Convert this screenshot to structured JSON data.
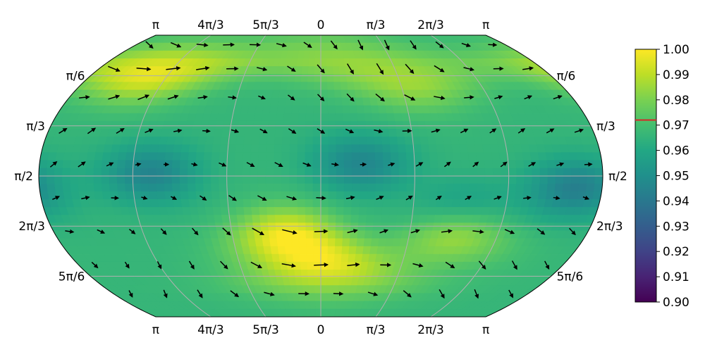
{
  "chart_data": {
    "type": "heatmap",
    "projection": "kavrayskiy",
    "title": "",
    "xlabel": "",
    "ylabel": "",
    "longitude_tick_labels": [
      "π",
      "4π/3",
      "5π/3",
      "0",
      "π/3",
      "2π/3",
      "π"
    ],
    "latitude_tick_labels": [
      "π/6",
      "π/3",
      "π/2",
      "2π/3",
      "5π/6"
    ],
    "grid": true,
    "colormap": "viridis",
    "colorbar": {
      "range": [
        0.9,
        1.0
      ],
      "tick_labels": [
        "0.90",
        "0.91",
        "0.92",
        "0.93",
        "0.94",
        "0.95",
        "0.96",
        "0.97",
        "0.98",
        "0.99",
        "1.00"
      ],
      "marker_value": 0.972,
      "marker_color": "#d62728"
    },
    "field_highlights": [
      {
        "region": "upper-left",
        "lat": 0.5,
        "lon": -2.35,
        "value": 0.997
      },
      {
        "region": "lower-center",
        "lat": 2.2,
        "lon": -0.4,
        "value": 0.998
      },
      {
        "region": "bottom-center",
        "lat": 2.55,
        "lon": 0.1,
        "value": 0.99
      },
      {
        "region": "lower-right",
        "lat": 2.2,
        "lon": 1.6,
        "value": 0.987
      },
      {
        "region": "upper-right",
        "lat": 0.6,
        "lon": 1.2,
        "value": 0.985
      },
      {
        "region": "equator-left",
        "lat": 1.55,
        "lon": -1.9,
        "value": 0.945
      },
      {
        "region": "equator-center",
        "lat": 1.45,
        "lon": 0.45,
        "value": 0.946
      },
      {
        "region": "equator-right",
        "lat": 1.7,
        "lon": 2.85,
        "value": 0.943
      },
      {
        "region": "mid-right",
        "lat": 1.9,
        "lon": 1.6,
        "value": 0.955
      },
      {
        "region": "top-strip",
        "lat": 0.3,
        "lon": 0.0,
        "value": 0.978
      }
    ],
    "background_value": 0.966,
    "quiver": {
      "description": "tangent vector field drawn as arrows on a latitude/longitude grid",
      "latitudes": [
        0.2,
        0.45,
        0.75,
        1.1,
        1.45,
        1.8,
        2.15,
        2.5,
        2.8
      ],
      "longitudes_per_row": [
        14,
        15,
        17,
        19,
        20,
        19,
        17,
        15,
        12
      ]
    }
  }
}
